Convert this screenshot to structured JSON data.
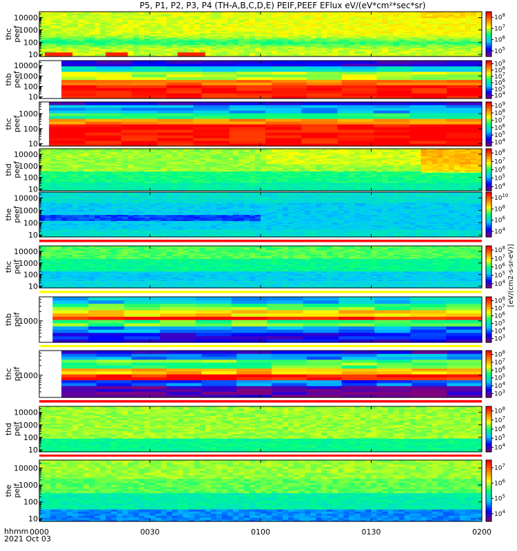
{
  "title": "P5, P1, P2, P3, P4 (TH-A,B,C,D,E) PEIF,PEEF EFlux eV/(eV*cm²*sec*sr)",
  "time_axis": {
    "row_label_1": "hhmm",
    "row_label_2": "2021 Oct 03"
  },
  "units_label": "[eV/(cm2-s-sr-eV)]",
  "colors": {
    "colormap": [
      "#800080",
      "#0000ff",
      "#00c8ff",
      "#00ff80",
      "#ffff00",
      "#ff8000",
      "#ff0000"
    ],
    "separator_red": "#ff0000",
    "separator_yellow": "#ffff00"
  },
  "chart_data": {
    "type": "heatmap",
    "x": {
      "ticks": [
        "0000",
        "0030",
        "0100",
        "0130",
        "0200"
      ],
      "range_minutes": [
        0,
        120
      ]
    },
    "panels": [
      {
        "id": "thc-peef-a",
        "label_1": "thc",
        "label_2": "peef",
        "y_ticks": [
          "10",
          "100",
          "1000",
          "10000"
        ],
        "ylim": [
          7,
          30000
        ],
        "y_scale": "log",
        "colorbar_ticks": [
          "10^5",
          "10^6",
          "10^7",
          "10^8"
        ]
      },
      {
        "id": "thb-peef",
        "label_1": "thb",
        "label_2": "peef",
        "y_ticks": [
          "10",
          "100",
          "1000",
          "10000"
        ],
        "ylim": [
          7,
          30000
        ],
        "y_scale": "log",
        "colorbar_ticks": [
          "10^4",
          "10^5",
          "10^6",
          "10^7",
          "10^8",
          "10^9"
        ]
      },
      {
        "id": "thc-peef-b",
        "label_1": "thc",
        "label_2": "peef",
        "y_ticks": [
          "10",
          "100",
          "1000"
        ],
        "ylim": [
          7,
          6000
        ],
        "y_scale": "log",
        "colorbar_ticks": [
          "10^4",
          "10^5",
          "10^6",
          "10^7",
          "10^8",
          "10^9"
        ]
      },
      {
        "id": "thd-peef",
        "label_1": "thd",
        "label_2": "peef",
        "y_ticks": [
          "10",
          "100",
          "1000",
          "10000"
        ],
        "ylim": [
          7,
          30000
        ],
        "y_scale": "log",
        "colorbar_ticks": [
          "10^4",
          "10^5",
          "10^6",
          "10^7",
          "10^8"
        ]
      },
      {
        "id": "the-peef",
        "label_1": "the",
        "label_2": "peef",
        "y_ticks": [
          "10",
          "100",
          "1000",
          "10000"
        ],
        "ylim": [
          7,
          30000
        ],
        "y_scale": "log",
        "colorbar_ticks": [
          "10^4",
          "10^6",
          "10^8",
          "10^10"
        ]
      },
      {
        "id": "thc-peif-a",
        "label_1": "thc",
        "label_2": "peif",
        "y_ticks": [
          "10",
          "100",
          "1000",
          "10000"
        ],
        "ylim": [
          7,
          30000
        ],
        "y_scale": "log",
        "colorbar_ticks": [
          "10^4",
          "10^5",
          "10^6",
          "10^7",
          "10^8"
        ]
      },
      {
        "id": "thb-peif",
        "label_1": "thb",
        "label_2": "peif",
        "y_ticks": [
          "1000"
        ],
        "ylim": [
          200,
          6000
        ],
        "y_scale": "log",
        "colorbar_ticks": [
          "10^3",
          "10^4",
          "10^5",
          "10^6",
          "10^7",
          "10^8"
        ]
      },
      {
        "id": "thc-peif-b",
        "label_1": "thc",
        "label_2": "peif",
        "y_ticks": [
          "1000"
        ],
        "ylim": [
          200,
          6000
        ],
        "y_scale": "log",
        "colorbar_ticks": [
          "10^3",
          "10^4",
          "10^5",
          "10^6",
          "10^7",
          "10^8"
        ]
      },
      {
        "id": "thd-peif",
        "label_1": "thd",
        "label_2": "peif",
        "y_ticks": [
          "10",
          "100",
          "1000",
          "10000"
        ],
        "ylim": [
          7,
          30000
        ],
        "y_scale": "log",
        "colorbar_ticks": [
          "10^4",
          "10^5",
          "10^6",
          "10^7",
          "10^8"
        ]
      },
      {
        "id": "the-peif",
        "label_1": "the",
        "label_2": "peif",
        "y_ticks": [
          "10",
          "100",
          "1000",
          "10000"
        ],
        "ylim": [
          7,
          30000
        ],
        "y_scale": "log",
        "colorbar_ticks": [
          "10^4",
          "10^5",
          "10^6",
          "10^7"
        ]
      }
    ]
  }
}
